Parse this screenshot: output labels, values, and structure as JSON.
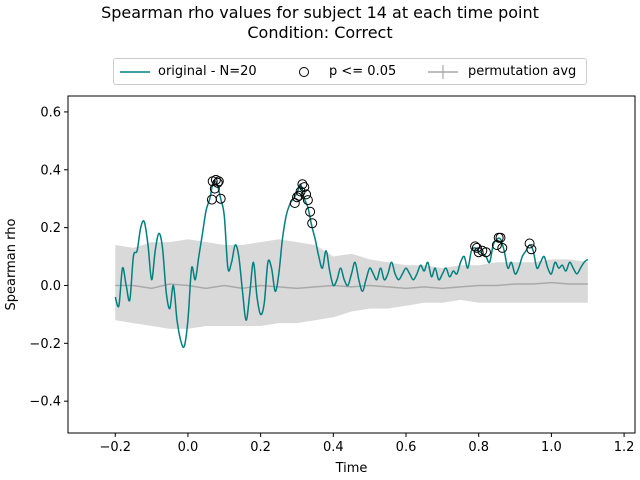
{
  "chart_data": {
    "type": "line",
    "title": "Spearman rho values for subject 14 at each time point",
    "subtitle": "Condition: Correct",
    "xlabel": "Time",
    "ylabel": "Spearman rho",
    "xlim": [
      -0.33,
      1.23
    ],
    "ylim": [
      -0.51,
      0.655
    ],
    "x_ticks": [
      -0.2,
      0.0,
      0.2,
      0.4,
      0.6,
      0.8,
      1.0,
      1.2
    ],
    "x_tick_labels": [
      "−0.2",
      "0.0",
      "0.2",
      "0.4",
      "0.6",
      "0.8",
      "1.0",
      "1.2"
    ],
    "y_ticks": [
      -0.4,
      -0.2,
      0.0,
      0.2,
      0.4,
      0.6
    ],
    "y_tick_labels": [
      "−0.4",
      "−0.2",
      "0.0",
      "0.2",
      "0.4",
      "0.6"
    ],
    "grid": false,
    "legend_position": "top-center, above plot",
    "legend": [
      {
        "label": "original - N=20",
        "marker": "line",
        "color": "#008080"
      },
      {
        "label": "p <= 0.05",
        "marker": "open-circle",
        "color": "#000000"
      },
      {
        "label": "permutation avg",
        "marker": "line-cross",
        "color": "#a9a9a9"
      }
    ],
    "colors": {
      "original": "#008080",
      "permutation_avg": "#a9a9a9",
      "permutation_band": "#d9d9d9",
      "significant_marker_edge": "#000000"
    },
    "series": [
      {
        "name": "original - N=20",
        "x": [
          -0.2,
          -0.19,
          -0.18,
          -0.17,
          -0.16,
          -0.15,
          -0.14,
          -0.13,
          -0.12,
          -0.11,
          -0.1,
          -0.09,
          -0.08,
          -0.07,
          -0.06,
          -0.05,
          -0.04,
          -0.03,
          -0.02,
          -0.01,
          0.0,
          0.01,
          0.02,
          0.03,
          0.04,
          0.05,
          0.06,
          0.07,
          0.08,
          0.09,
          0.1,
          0.11,
          0.12,
          0.13,
          0.14,
          0.15,
          0.16,
          0.17,
          0.18,
          0.19,
          0.2,
          0.21,
          0.22,
          0.23,
          0.24,
          0.25,
          0.26,
          0.27,
          0.28,
          0.29,
          0.3,
          0.31,
          0.32,
          0.33,
          0.34,
          0.35,
          0.36,
          0.37,
          0.38,
          0.39,
          0.4,
          0.41,
          0.42,
          0.43,
          0.44,
          0.45,
          0.46,
          0.47,
          0.48,
          0.49,
          0.5,
          0.51,
          0.52,
          0.53,
          0.54,
          0.55,
          0.56,
          0.57,
          0.58,
          0.59,
          0.6,
          0.61,
          0.62,
          0.63,
          0.64,
          0.65,
          0.66,
          0.67,
          0.68,
          0.69,
          0.7,
          0.71,
          0.72,
          0.73,
          0.74,
          0.75,
          0.76,
          0.77,
          0.78,
          0.79,
          0.8,
          0.81,
          0.82,
          0.83,
          0.84,
          0.85,
          0.86,
          0.87,
          0.88,
          0.89,
          0.9,
          0.91,
          0.92,
          0.93,
          0.94,
          0.95,
          0.96,
          0.97,
          0.98,
          0.99,
          1.0,
          1.01,
          1.02,
          1.03,
          1.04,
          1.05,
          1.06,
          1.07,
          1.08,
          1.09,
          1.1
        ],
        "values": [
          -0.04,
          -0.07,
          0.06,
          0.0,
          -0.05,
          0.1,
          0.12,
          0.2,
          0.22,
          0.14,
          0.02,
          0.12,
          0.18,
          0.13,
          -0.02,
          -0.08,
          0.0,
          -0.12,
          -0.19,
          -0.21,
          -0.12,
          0.06,
          0.02,
          0.1,
          0.18,
          0.26,
          0.3,
          0.36,
          0.35,
          0.3,
          0.24,
          0.06,
          0.08,
          0.14,
          0.1,
          -0.02,
          -0.12,
          -0.03,
          0.08,
          -0.04,
          -0.1,
          -0.06,
          0.08,
          0.06,
          -0.02,
          0.04,
          0.16,
          0.24,
          0.28,
          0.3,
          0.32,
          0.35,
          0.3,
          0.27,
          0.21,
          0.16,
          0.1,
          0.06,
          0.12,
          0.05,
          0.0,
          0.02,
          0.06,
          0.02,
          0.0,
          0.04,
          0.08,
          0.02,
          -0.02,
          0.02,
          0.06,
          0.04,
          0.02,
          0.06,
          0.02,
          0.04,
          0.08,
          0.04,
          0.02,
          0.04,
          0.06,
          0.04,
          0.02,
          0.04,
          0.07,
          0.05,
          0.08,
          0.03,
          0.06,
          0.02,
          0.04,
          0.06,
          0.03,
          0.05,
          0.04,
          0.08,
          0.1,
          0.06,
          0.12,
          0.13,
          0.12,
          0.11,
          0.1,
          0.08,
          0.14,
          0.16,
          0.16,
          0.12,
          0.06,
          0.08,
          0.04,
          0.06,
          0.1,
          0.12,
          0.14,
          0.12,
          0.06,
          0.08,
          0.1,
          0.06,
          0.04,
          0.08,
          0.06,
          0.07,
          0.05,
          0.08,
          0.06,
          0.04,
          0.06,
          0.08,
          0.09
        ]
      },
      {
        "name": "permutation avg",
        "x": [
          -0.2,
          -0.15,
          -0.1,
          -0.05,
          0.0,
          0.05,
          0.1,
          0.15,
          0.2,
          0.25,
          0.3,
          0.35,
          0.4,
          0.45,
          0.5,
          0.55,
          0.6,
          0.65,
          0.7,
          0.75,
          0.8,
          0.85,
          0.9,
          0.95,
          1.0,
          1.05,
          1.1
        ],
        "values": [
          0.0,
          0.0,
          -0.01,
          0.005,
          0.0,
          -0.01,
          0.0,
          -0.01,
          0.0,
          -0.005,
          -0.01,
          -0.005,
          0.0,
          -0.005,
          0.0,
          -0.005,
          -0.01,
          -0.005,
          -0.01,
          -0.005,
          0.0,
          0.0,
          0.005,
          0.005,
          0.01,
          0.005,
          0.005
        ]
      }
    ],
    "permutation_band": {
      "x": [
        -0.2,
        -0.15,
        -0.1,
        -0.05,
        0.0,
        0.05,
        0.1,
        0.15,
        0.2,
        0.25,
        0.3,
        0.35,
        0.4,
        0.45,
        0.5,
        0.55,
        0.6,
        0.65,
        0.7,
        0.75,
        0.8,
        0.85,
        0.9,
        0.95,
        1.0,
        1.05,
        1.1
      ],
      "upper": [
        0.14,
        0.13,
        0.15,
        0.15,
        0.16,
        0.15,
        0.14,
        0.14,
        0.15,
        0.16,
        0.15,
        0.14,
        0.1,
        0.11,
        0.09,
        0.08,
        0.07,
        0.07,
        0.06,
        0.07,
        0.07,
        0.08,
        0.08,
        0.08,
        0.09,
        0.09,
        0.08
      ],
      "lower": [
        -0.12,
        -0.13,
        -0.14,
        -0.15,
        -0.15,
        -0.14,
        -0.14,
        -0.14,
        -0.14,
        -0.13,
        -0.13,
        -0.12,
        -0.11,
        -0.09,
        -0.08,
        -0.08,
        -0.07,
        -0.06,
        -0.06,
        -0.05,
        -0.06,
        -0.06,
        -0.06,
        -0.06,
        -0.06,
        -0.06,
        -0.06
      ]
    },
    "significant_points": {
      "name": "p <= 0.05",
      "x": [
        0.066,
        0.068,
        0.074,
        0.077,
        0.082,
        0.085,
        0.09,
        0.294,
        0.3,
        0.305,
        0.31,
        0.315,
        0.32,
        0.325,
        0.33,
        0.336,
        0.342,
        0.79,
        0.795,
        0.8,
        0.81,
        0.82,
        0.85,
        0.855,
        0.86,
        0.865,
        0.94,
        0.945
      ],
      "values": [
        0.297,
        0.36,
        0.335,
        0.365,
        0.355,
        0.36,
        0.3,
        0.285,
        0.305,
        0.31,
        0.325,
        0.35,
        0.34,
        0.315,
        0.295,
        0.255,
        0.215,
        0.135,
        0.13,
        0.115,
        0.12,
        0.115,
        0.14,
        0.165,
        0.165,
        0.13,
        0.145,
        0.125
      ]
    }
  }
}
